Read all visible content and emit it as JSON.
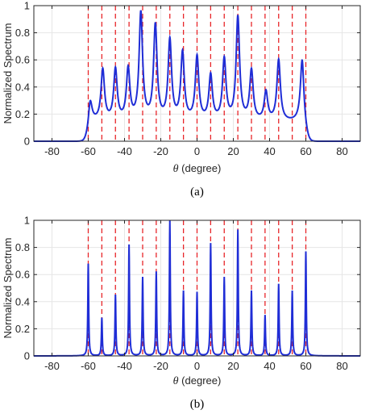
{
  "chart_data": [
    {
      "id": "a",
      "type": "line",
      "caption": "(a)",
      "xlabel_symbol": "θ",
      "xlabel_text": " (degree)",
      "ylabel": "Normalized Spectrum",
      "xlim": [
        -90,
        90
      ],
      "ylim": [
        0,
        1
      ],
      "xticks": [
        -80,
        -60,
        -40,
        -20,
        0,
        20,
        40,
        60,
        80
      ],
      "xtick_labels": [
        "-80",
        "-60",
        "-40",
        "-20",
        "0",
        "20",
        "40",
        "60",
        "80"
      ],
      "yticks": [
        0,
        0.2,
        0.4,
        0.6,
        0.8,
        1
      ],
      "ytick_labels": [
        "0",
        "0.2",
        "0.4",
        "0.6",
        "0.8",
        "1"
      ],
      "grid": true,
      "true_directions": [
        -60,
        -52.5,
        -45,
        -37.5,
        -30,
        -22.5,
        -15,
        -7.5,
        0,
        7.5,
        15,
        22.5,
        30,
        37.5,
        45,
        52.5,
        60
      ],
      "series": [
        {
          "color": "#1f2dd6",
          "style": "broad",
          "floor": 0.14,
          "edge_min": -60.5,
          "edge_max": 60.5,
          "peaks": [
            {
              "x": -59,
              "y": 0.35
            },
            {
              "x": -52,
              "y": 0.55
            },
            {
              "x": -45,
              "y": 0.55
            },
            {
              "x": -38,
              "y": 0.55
            },
            {
              "x": -31,
              "y": 1.0
            },
            {
              "x": -23,
              "y": 0.9
            },
            {
              "x": -15,
              "y": 0.78
            },
            {
              "x": -8,
              "y": 0.68
            },
            {
              "x": 0,
              "y": 0.65
            },
            {
              "x": 7.5,
              "y": 0.5
            },
            {
              "x": 15,
              "y": 0.63
            },
            {
              "x": 22.5,
              "y": 0.97
            },
            {
              "x": 30,
              "y": 0.54
            },
            {
              "x": 38,
              "y": 0.37
            },
            {
              "x": 45,
              "y": 0.63
            },
            {
              "x": 58,
              "y": 0.67
            }
          ]
        }
      ]
    },
    {
      "id": "b",
      "type": "line",
      "caption": "(b)",
      "xlabel_symbol": "θ",
      "xlabel_text": " (degree)",
      "ylabel": "Normalized Spectrum",
      "xlim": [
        -90,
        90
      ],
      "ylim": [
        0,
        1
      ],
      "xticks": [
        -80,
        -60,
        -40,
        -20,
        0,
        20,
        40,
        60,
        80
      ],
      "xtick_labels": [
        "-80",
        "-60",
        "-40",
        "-20",
        "0",
        "20",
        "40",
        "60",
        "80"
      ],
      "yticks": [
        0,
        0.2,
        0.4,
        0.6,
        0.8,
        1
      ],
      "ytick_labels": [
        "0",
        "0.2",
        "0.4",
        "0.6",
        "0.8",
        "1"
      ],
      "grid": true,
      "true_directions": [
        -60,
        -52.5,
        -45,
        -37.5,
        -30,
        -22.5,
        -15,
        -7.5,
        0,
        7.5,
        15,
        22.5,
        30,
        37.5,
        45,
        52.5,
        60
      ],
      "series": [
        {
          "color": "#1f2dd6",
          "style": "sharp",
          "floor": 0.0,
          "peaks": [
            {
              "x": -60,
              "y": 0.68
            },
            {
              "x": -52.5,
              "y": 0.28
            },
            {
              "x": -45,
              "y": 0.45
            },
            {
              "x": -37.5,
              "y": 0.82
            },
            {
              "x": -30,
              "y": 0.58
            },
            {
              "x": -22.5,
              "y": 0.62
            },
            {
              "x": -15,
              "y": 1.0
            },
            {
              "x": -7.5,
              "y": 0.48
            },
            {
              "x": 0,
              "y": 0.47
            },
            {
              "x": 7.5,
              "y": 0.83
            },
            {
              "x": 15,
              "y": 0.58
            },
            {
              "x": 22.5,
              "y": 0.93
            },
            {
              "x": 30,
              "y": 0.48
            },
            {
              "x": 37.5,
              "y": 0.3
            },
            {
              "x": 45,
              "y": 0.53
            },
            {
              "x": 52.5,
              "y": 0.48
            },
            {
              "x": 60,
              "y": 0.77
            }
          ]
        }
      ]
    }
  ],
  "colors": {
    "curve": "#1f2dd6",
    "true_direction_line": "#e8262a",
    "grid": "#e6e6e6",
    "axis": "#262626"
  }
}
